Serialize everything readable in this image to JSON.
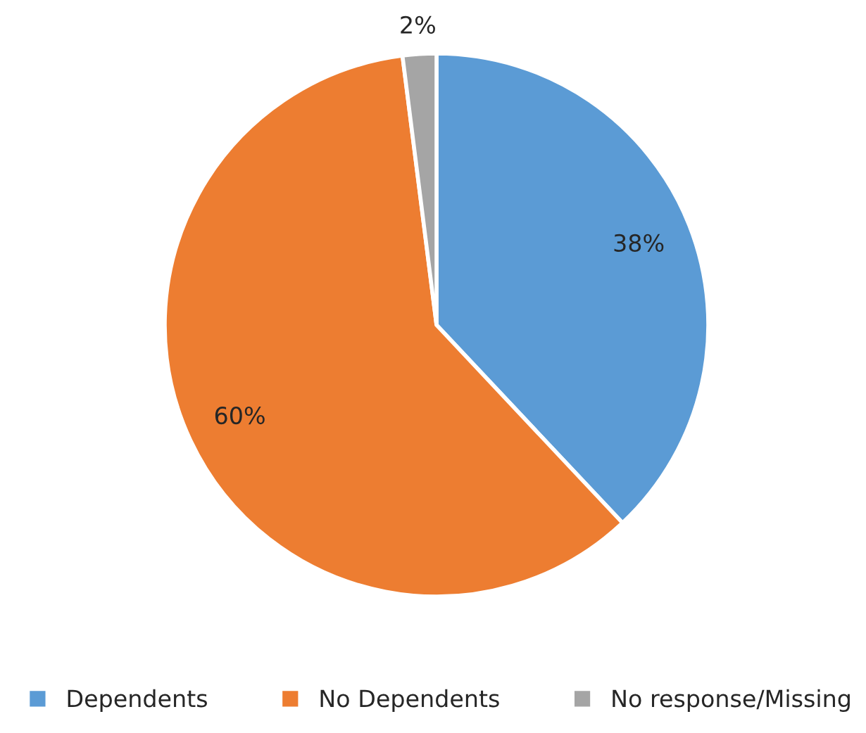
{
  "chart_data": {
    "type": "pie",
    "categories": [
      "Dependents",
      "No Dependents",
      "No response/Missing"
    ],
    "values": [
      38,
      60,
      2
    ],
    "colors": [
      "#5b9bd5",
      "#ed7d31",
      "#a5a5a5"
    ],
    "value_labels": [
      "38%",
      "60%",
      "2%"
    ],
    "legend": "bottom"
  }
}
